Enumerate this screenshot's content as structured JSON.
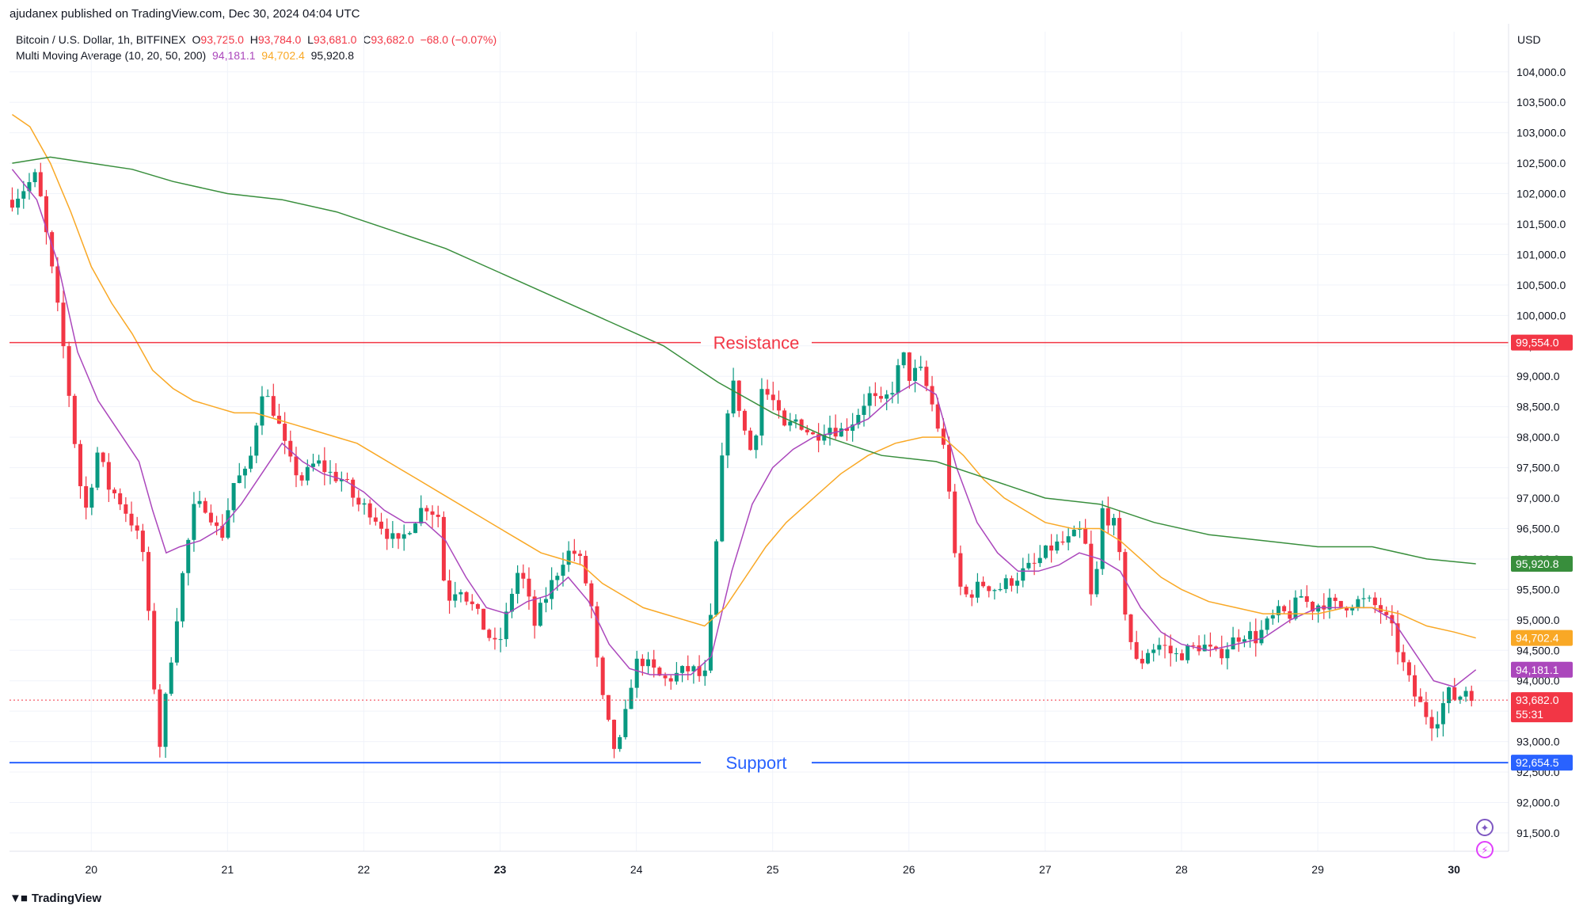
{
  "publisher_line": "ajudanex published on TradingView.com, Dec 30, 2024 04:04 UTC",
  "legend": {
    "symbol": "Bitcoin / U.S. Dollar, 1h, BITFINEX",
    "o_label": "O",
    "o": "93,725.0",
    "h_label": "H",
    "h": "93,784.0",
    "l_label": "L",
    "l": "93,681.0",
    "c_label": "C",
    "c": "93,682.0",
    "change": "−68.0 (−0.07%)",
    "ma_title": "Multi Moving Average (10, 20, 50, 200)",
    "ma_values": [
      "94,181.1",
      "94,702.4",
      "95,920.8"
    ]
  },
  "brand": {
    "logo_icon": "tradingview-logo-icon",
    "name": "TradingView"
  },
  "colors": {
    "up": "#089981",
    "down": "#f23645",
    "ma10": "#ab47bc",
    "ma20": "#f9a825",
    "ma200": "#388e3c",
    "resistance": "#f23645",
    "support": "#2962ff",
    "grid": "#f0f3fa",
    "axis_text": "#131722"
  },
  "chart_data": {
    "type": "candlestick",
    "currency_label": "USD",
    "y_ticks": [
      91500,
      92000,
      92500,
      93000,
      93500,
      94000,
      94500,
      95000,
      95500,
      96000,
      96500,
      97000,
      97500,
      98000,
      98500,
      99000,
      99500,
      100000,
      100500,
      101000,
      101500,
      102000,
      102500,
      103000,
      103500,
      104000
    ],
    "y_tick_labels": [
      "91,500.0",
      "92,000.0",
      "92,500.0",
      "93,000.0",
      "93,500.0",
      "94,000.0",
      "94,500.0",
      "95,000.0",
      "95,500.0",
      "96,000.0",
      "96,500.0",
      "97,000.0",
      "97,500.0",
      "98,000.0",
      "98,500.0",
      "99,000.0",
      "99,500.0",
      "100,000.0",
      "100,500.0",
      "101,000.0",
      "101,500.0",
      "102,000.0",
      "102,500.0",
      "103,000.0",
      "103,500.0",
      "104,000.0"
    ],
    "ylim": [
      91200,
      104400
    ],
    "x_ticks": [
      {
        "label": "20",
        "day": 20,
        "bold": false
      },
      {
        "label": "21",
        "day": 21,
        "bold": false
      },
      {
        "label": "22",
        "day": 22,
        "bold": false
      },
      {
        "label": "23",
        "day": 23,
        "bold": true
      },
      {
        "label": "24",
        "day": 24,
        "bold": false
      },
      {
        "label": "25",
        "day": 25,
        "bold": false
      },
      {
        "label": "26",
        "day": 26,
        "bold": false
      },
      {
        "label": "27",
        "day": 27,
        "bold": false
      },
      {
        "label": "28",
        "day": 28,
        "bold": false
      },
      {
        "label": "29",
        "day": 29,
        "bold": false
      },
      {
        "label": "30",
        "day": 30,
        "bold": true
      }
    ],
    "xlim_days": [
      19.4,
      30.4
    ],
    "levels": [
      {
        "name": "Resistance",
        "value": 99554.0,
        "label": "99,554.0",
        "color": "#f23645"
      },
      {
        "name": "Support",
        "value": 92654.5,
        "label": "92,654.5",
        "color": "#2962ff"
      }
    ],
    "last_price": {
      "value": 93682.0,
      "label": "93,682.0",
      "countdown": "55:31"
    },
    "ma_tags": [
      {
        "value": 95920.8,
        "label": "95,920.8",
        "color": "#388e3c"
      },
      {
        "value": 94702.4,
        "label": "94,702.4",
        "color": "#f9a825"
      },
      {
        "value": 94181.1,
        "label": "94,181.1",
        "color": "#ab47bc"
      }
    ],
    "close_path": [
      [
        19.42,
        101900
      ],
      [
        19.6,
        102300
      ],
      [
        19.7,
        100900
      ],
      [
        19.8,
        99400
      ],
      [
        19.88,
        97900
      ],
      [
        19.95,
        96700
      ],
      [
        20.05,
        97800
      ],
      [
        20.12,
        97200
      ],
      [
        20.2,
        97000
      ],
      [
        20.3,
        96600
      ],
      [
        20.38,
        96100
      ],
      [
        20.44,
        94500
      ],
      [
        20.5,
        92900
      ],
      [
        20.58,
        94300
      ],
      [
        20.66,
        95600
      ],
      [
        20.75,
        96800
      ],
      [
        20.85,
        96900
      ],
      [
        20.95,
        96300
      ],
      [
        21.05,
        97300
      ],
      [
        21.15,
        97400
      ],
      [
        21.25,
        98800
      ],
      [
        21.35,
        98400
      ],
      [
        21.45,
        97600
      ],
      [
        21.55,
        97300
      ],
      [
        21.65,
        97600
      ],
      [
        21.75,
        97400
      ],
      [
        21.85,
        97300
      ],
      [
        21.95,
        96900
      ],
      [
        22.05,
        96800
      ],
      [
        22.15,
        96500
      ],
      [
        22.25,
        96200
      ],
      [
        22.35,
        96600
      ],
      [
        22.45,
        96900
      ],
      [
        22.55,
        96700
      ],
      [
        22.6,
        95300
      ],
      [
        22.7,
        95600
      ],
      [
        22.8,
        95200
      ],
      [
        22.9,
        94800
      ],
      [
        22.98,
        94500
      ],
      [
        23.05,
        95100
      ],
      [
        23.12,
        95800
      ],
      [
        23.18,
        95600
      ],
      [
        23.25,
        94900
      ],
      [
        23.32,
        95300
      ],
      [
        23.4,
        95700
      ],
      [
        23.48,
        96100
      ],
      [
        23.55,
        96100
      ],
      [
        23.6,
        95900
      ],
      [
        23.67,
        95200
      ],
      [
        23.73,
        93900
      ],
      [
        23.8,
        93200
      ],
      [
        23.85,
        92800
      ],
      [
        23.9,
        93100
      ],
      [
        23.95,
        93900
      ],
      [
        24.02,
        94400
      ],
      [
        24.1,
        94200
      ],
      [
        24.2,
        94000
      ],
      [
        24.3,
        94100
      ],
      [
        24.4,
        94200
      ],
      [
        24.5,
        94000
      ],
      [
        24.56,
        95300
      ],
      [
        24.62,
        97400
      ],
      [
        24.67,
        98500
      ],
      [
        24.72,
        98900
      ],
      [
        24.78,
        98200
      ],
      [
        24.85,
        97700
      ],
      [
        24.92,
        98800
      ],
      [
        25.0,
        98600
      ],
      [
        25.08,
        98100
      ],
      [
        25.18,
        98300
      ],
      [
        25.3,
        98000
      ],
      [
        25.4,
        98200
      ],
      [
        25.5,
        98100
      ],
      [
        25.6,
        98300
      ],
      [
        25.7,
        98700
      ],
      [
        25.8,
        98500
      ],
      [
        25.9,
        98900
      ],
      [
        25.95,
        99400
      ],
      [
        26.0,
        99000
      ],
      [
        26.08,
        99100
      ],
      [
        26.15,
        98700
      ],
      [
        26.22,
        98100
      ],
      [
        26.28,
        97600
      ],
      [
        26.35,
        95600
      ],
      [
        26.42,
        95400
      ],
      [
        26.55,
        95600
      ],
      [
        26.65,
        95500
      ],
      [
        26.78,
        95700
      ],
      [
        26.92,
        95900
      ],
      [
        27.05,
        96200
      ],
      [
        27.18,
        96300
      ],
      [
        27.28,
        96500
      ],
      [
        27.35,
        95100
      ],
      [
        27.42,
        96800
      ],
      [
        27.52,
        96500
      ],
      [
        27.6,
        94900
      ],
      [
        27.68,
        94200
      ],
      [
        27.75,
        94500
      ],
      [
        27.85,
        94600
      ],
      [
        27.95,
        94400
      ],
      [
        28.05,
        94500
      ],
      [
        28.15,
        94600
      ],
      [
        28.25,
        94400
      ],
      [
        28.35,
        94600
      ],
      [
        28.45,
        94800
      ],
      [
        28.55,
        94700
      ],
      [
        28.62,
        94900
      ],
      [
        28.7,
        95100
      ],
      [
        28.8,
        95100
      ],
      [
        28.88,
        95400
      ],
      [
        28.95,
        95200
      ],
      [
        29.05,
        95300
      ],
      [
        29.15,
        95200
      ],
      [
        29.25,
        95300
      ],
      [
        29.35,
        95300
      ],
      [
        29.45,
        95200
      ],
      [
        29.55,
        94800
      ],
      [
        29.62,
        94300
      ],
      [
        29.7,
        93800
      ],
      [
        29.78,
        93500
      ],
      [
        29.85,
        93300
      ],
      [
        29.9,
        93500
      ],
      [
        29.95,
        93800
      ],
      [
        30.02,
        93700
      ],
      [
        30.1,
        93900
      ],
      [
        30.16,
        93682
      ]
    ],
    "series": [
      {
        "name": "MA 10",
        "color": "#ab47bc",
        "points": [
          [
            19.42,
            102400
          ],
          [
            19.6,
            101900
          ],
          [
            19.75,
            100900
          ],
          [
            19.9,
            99400
          ],
          [
            20.05,
            98600
          ],
          [
            20.2,
            98100
          ],
          [
            20.35,
            97600
          ],
          [
            20.45,
            96800
          ],
          [
            20.55,
            96100
          ],
          [
            20.65,
            96200
          ],
          [
            20.8,
            96300
          ],
          [
            20.95,
            96500
          ],
          [
            21.1,
            96900
          ],
          [
            21.25,
            97400
          ],
          [
            21.4,
            97900
          ],
          [
            21.55,
            97600
          ],
          [
            21.7,
            97400
          ],
          [
            21.85,
            97300
          ],
          [
            22.0,
            97100
          ],
          [
            22.15,
            96800
          ],
          [
            22.3,
            96600
          ],
          [
            22.45,
            96600
          ],
          [
            22.6,
            96300
          ],
          [
            22.75,
            95700
          ],
          [
            22.9,
            95200
          ],
          [
            23.05,
            95100
          ],
          [
            23.2,
            95300
          ],
          [
            23.35,
            95400
          ],
          [
            23.5,
            95700
          ],
          [
            23.65,
            95300
          ],
          [
            23.8,
            94600
          ],
          [
            23.95,
            94200
          ],
          [
            24.1,
            94100
          ],
          [
            24.25,
            94100
          ],
          [
            24.4,
            94100
          ],
          [
            24.55,
            94400
          ],
          [
            24.7,
            95800
          ],
          [
            24.85,
            96900
          ],
          [
            25.0,
            97500
          ],
          [
            25.15,
            97800
          ],
          [
            25.3,
            98000
          ],
          [
            25.5,
            98100
          ],
          [
            25.7,
            98300
          ],
          [
            25.9,
            98700
          ],
          [
            26.05,
            98900
          ],
          [
            26.2,
            98700
          ],
          [
            26.35,
            97500
          ],
          [
            26.5,
            96600
          ],
          [
            26.65,
            96100
          ],
          [
            26.8,
            95800
          ],
          [
            26.95,
            95800
          ],
          [
            27.1,
            95900
          ],
          [
            27.25,
            96100
          ],
          [
            27.4,
            96000
          ],
          [
            27.55,
            95800
          ],
          [
            27.7,
            95200
          ],
          [
            27.85,
            94800
          ],
          [
            28.0,
            94600
          ],
          [
            28.2,
            94500
          ],
          [
            28.4,
            94600
          ],
          [
            28.6,
            94700
          ],
          [
            28.8,
            95000
          ],
          [
            29.0,
            95200
          ],
          [
            29.2,
            95200
          ],
          [
            29.4,
            95200
          ],
          [
            29.55,
            95000
          ],
          [
            29.7,
            94500
          ],
          [
            29.85,
            94000
          ],
          [
            30.0,
            93900
          ],
          [
            30.16,
            94181.1
          ]
        ]
      },
      {
        "name": "MA 20",
        "color": "#f9a825",
        "points": [
          [
            19.42,
            103300
          ],
          [
            19.55,
            103100
          ],
          [
            19.7,
            102500
          ],
          [
            19.85,
            101700
          ],
          [
            20.0,
            100800
          ],
          [
            20.15,
            100200
          ],
          [
            20.3,
            99700
          ],
          [
            20.45,
            99100
          ],
          [
            20.6,
            98800
          ],
          [
            20.75,
            98600
          ],
          [
            20.9,
            98500
          ],
          [
            21.05,
            98400
          ],
          [
            21.2,
            98400
          ],
          [
            21.35,
            98300
          ],
          [
            21.5,
            98200
          ],
          [
            21.65,
            98100
          ],
          [
            21.8,
            98000
          ],
          [
            21.95,
            97900
          ],
          [
            22.1,
            97700
          ],
          [
            22.25,
            97500
          ],
          [
            22.4,
            97300
          ],
          [
            22.55,
            97100
          ],
          [
            22.7,
            96900
          ],
          [
            22.85,
            96700
          ],
          [
            23.0,
            96500
          ],
          [
            23.15,
            96300
          ],
          [
            23.3,
            96100
          ],
          [
            23.45,
            96000
          ],
          [
            23.6,
            95900
          ],
          [
            23.75,
            95600
          ],
          [
            23.9,
            95400
          ],
          [
            24.05,
            95200
          ],
          [
            24.2,
            95100
          ],
          [
            24.35,
            95000
          ],
          [
            24.5,
            94900
          ],
          [
            24.65,
            95200
          ],
          [
            24.8,
            95700
          ],
          [
            24.95,
            96200
          ],
          [
            25.1,
            96600
          ],
          [
            25.3,
            97000
          ],
          [
            25.5,
            97400
          ],
          [
            25.7,
            97700
          ],
          [
            25.9,
            97900
          ],
          [
            26.1,
            98000
          ],
          [
            26.25,
            98000
          ],
          [
            26.4,
            97700
          ],
          [
            26.55,
            97300
          ],
          [
            26.7,
            97000
          ],
          [
            26.85,
            96800
          ],
          [
            27.0,
            96600
          ],
          [
            27.2,
            96500
          ],
          [
            27.4,
            96500
          ],
          [
            27.55,
            96300
          ],
          [
            27.7,
            96000
          ],
          [
            27.85,
            95700
          ],
          [
            28.0,
            95500
          ],
          [
            28.2,
            95300
          ],
          [
            28.4,
            95200
          ],
          [
            28.6,
            95100
          ],
          [
            28.8,
            95100
          ],
          [
            29.0,
            95100
          ],
          [
            29.2,
            95200
          ],
          [
            29.4,
            95200
          ],
          [
            29.6,
            95100
          ],
          [
            29.8,
            94900
          ],
          [
            30.0,
            94800
          ],
          [
            30.16,
            94702.4
          ]
        ]
      },
      {
        "name": "MA 200",
        "color": "#388e3c",
        "points": [
          [
            19.42,
            102500
          ],
          [
            19.7,
            102600
          ],
          [
            20.0,
            102500
          ],
          [
            20.3,
            102400
          ],
          [
            20.6,
            102200
          ],
          [
            21.0,
            102000
          ],
          [
            21.4,
            101900
          ],
          [
            21.8,
            101700
          ],
          [
            22.2,
            101400
          ],
          [
            22.6,
            101100
          ],
          [
            23.0,
            100700
          ],
          [
            23.4,
            100300
          ],
          [
            23.8,
            99900
          ],
          [
            24.2,
            99500
          ],
          [
            24.6,
            98900
          ],
          [
            25.0,
            98400
          ],
          [
            25.4,
            98000
          ],
          [
            25.8,
            97700
          ],
          [
            26.2,
            97600
          ],
          [
            26.6,
            97300
          ],
          [
            27.0,
            97000
          ],
          [
            27.4,
            96900
          ],
          [
            27.8,
            96600
          ],
          [
            28.2,
            96400
          ],
          [
            28.6,
            96300
          ],
          [
            29.0,
            96200
          ],
          [
            29.4,
            96200
          ],
          [
            29.8,
            96000
          ],
          [
            30.16,
            95920.8
          ]
        ]
      }
    ]
  }
}
